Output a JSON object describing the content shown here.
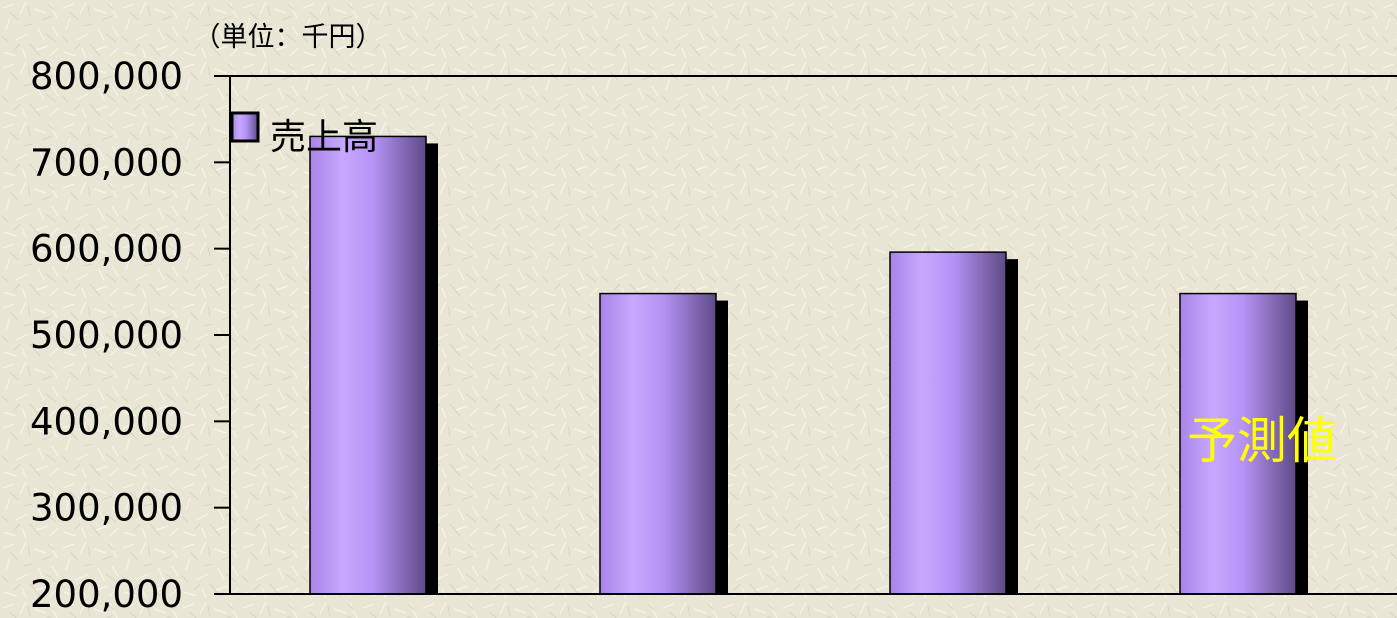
{
  "chart_data": {
    "type": "bar",
    "unit_label": "（単位：千円）",
    "categories": [
      "",
      "",
      "",
      ""
    ],
    "series": [
      {
        "name": "売上高",
        "values": [
          730000,
          548000,
          596000,
          548000
        ]
      }
    ],
    "ylim": [
      200000,
      800000
    ],
    "yticks": [
      "800,000",
      "700,000",
      "600,000",
      "500,000",
      "400,000",
      "300,000",
      "200,000"
    ],
    "ytick_values": [
      800000,
      700000,
      600000,
      500000,
      400000,
      300000,
      200000
    ],
    "legend_position": "top-left",
    "annotation": "予測値",
    "grid": false,
    "colors": {
      "bar_light": "#c8a8ff",
      "bar_mid": "#a884e8",
      "bar_dark": "#5e4a86",
      "shadow": "#000000",
      "annotation": "#ffff00",
      "background": "#e9e6d6"
    }
  }
}
